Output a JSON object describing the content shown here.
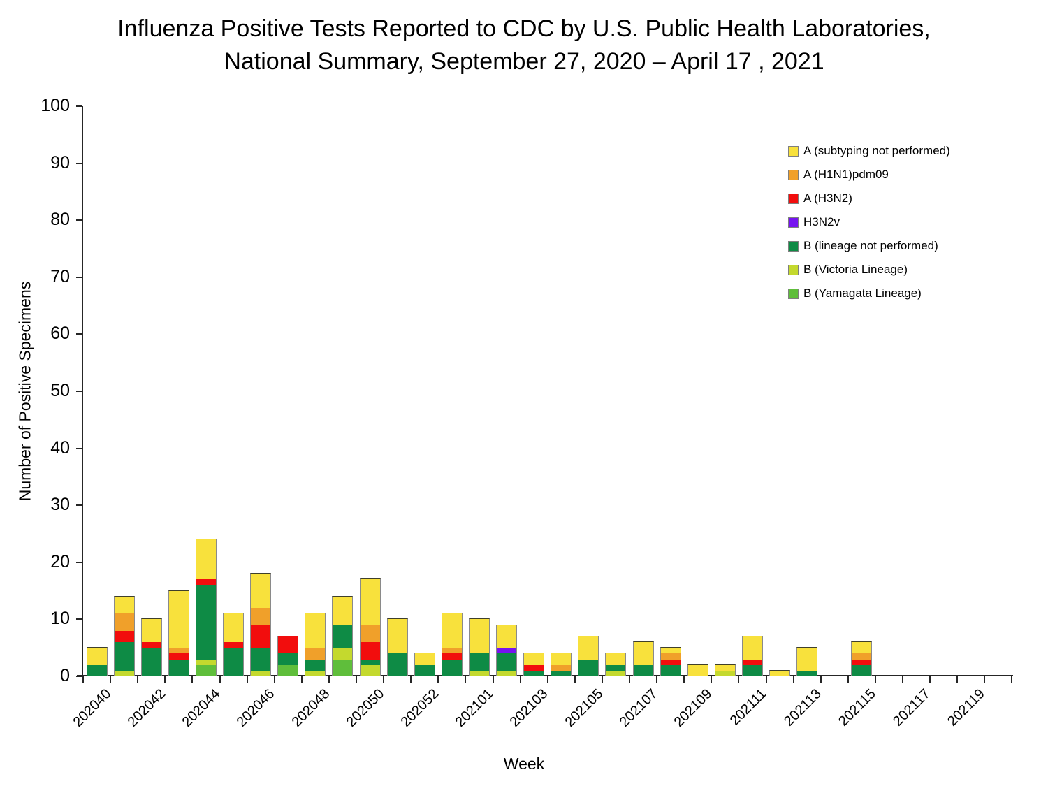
{
  "header": {
    "title_line1": "Influenza Positive Tests Reported to CDC by U.S. Public Health Laboratories,",
    "title_line2": "National Summary, September 27, 2020 – April 17 , 2021"
  },
  "chart_data": {
    "type": "bar",
    "stacked": true,
    "title": "Influenza Positive Tests Reported to CDC by U.S. Public Health Laboratories, National Summary, September 27, 2020 – April 17 , 2021",
    "xlabel": "Week",
    "ylabel": "Number of Positive Specimens",
    "ylim": [
      0,
      100
    ],
    "ytick_interval": 10,
    "grid": false,
    "legend_position": "upper right",
    "stack_order": "bottom-to-top is reverse of series order",
    "categories": [
      "202040",
      "202041",
      "202042",
      "202043",
      "202044",
      "202045",
      "202046",
      "202047",
      "202048",
      "202049",
      "202050",
      "202051",
      "202052",
      "202053",
      "202101",
      "202102",
      "202103",
      "202104",
      "202105",
      "202106",
      "202107",
      "202108",
      "202109",
      "202110",
      "202111",
      "202112",
      "202113",
      "202114",
      "202115",
      "202116",
      "202117",
      "202118",
      "202119",
      "202120"
    ],
    "xtick_labels": [
      "202040",
      "202042",
      "202044",
      "202046",
      "202048",
      "202050",
      "202052",
      "202101",
      "202103",
      "202105",
      "202107",
      "202109",
      "202111",
      "202113",
      "202115",
      "202117",
      "202119"
    ],
    "series": [
      {
        "name": "A (subtyping not performed)",
        "color": "#F8E13C",
        "values": [
          3,
          3,
          4,
          10,
          7,
          5,
          6,
          0,
          6,
          5,
          8,
          6,
          2,
          6,
          6,
          4,
          2,
          2,
          4,
          2,
          4,
          1,
          2,
          1,
          4,
          1,
          4,
          0,
          2,
          0,
          0,
          0,
          0,
          0
        ]
      },
      {
        "name": "A (H1N1)pdm09",
        "color": "#F0A02A",
        "values": [
          0,
          3,
          0,
          1,
          0,
          0,
          3,
          0,
          2,
          0,
          3,
          0,
          0,
          1,
          0,
          0,
          0,
          1,
          0,
          0,
          0,
          1,
          0,
          0,
          0,
          0,
          0,
          0,
          1,
          0,
          0,
          0,
          0,
          0
        ]
      },
      {
        "name": "A (H3N2)",
        "color": "#F20D0D",
        "values": [
          0,
          2,
          1,
          1,
          1,
          1,
          4,
          3,
          0,
          0,
          3,
          0,
          0,
          1,
          0,
          0,
          1,
          0,
          0,
          0,
          0,
          1,
          0,
          0,
          1,
          0,
          0,
          0,
          1,
          0,
          0,
          0,
          0,
          0
        ]
      },
      {
        "name": "H3N2v",
        "color": "#7614F0",
        "values": [
          0,
          0,
          0,
          0,
          0,
          0,
          0,
          0,
          0,
          0,
          0,
          0,
          0,
          0,
          0,
          1,
          0,
          0,
          0,
          0,
          0,
          0,
          0,
          0,
          0,
          0,
          0,
          0,
          0,
          0,
          0,
          0,
          0,
          0
        ]
      },
      {
        "name": "B (lineage not performed)",
        "color": "#0E8B45",
        "values": [
          2,
          5,
          5,
          3,
          13,
          5,
          4,
          2,
          2,
          4,
          1,
          4,
          2,
          3,
          3,
          3,
          1,
          1,
          3,
          1,
          2,
          2,
          0,
          0,
          2,
          0,
          1,
          0,
          2,
          0,
          0,
          0,
          0,
          0
        ]
      },
      {
        "name": "B (Victoria Lineage)",
        "color": "#C4D92E",
        "values": [
          0,
          1,
          0,
          0,
          1,
          0,
          1,
          0,
          1,
          2,
          2,
          0,
          0,
          0,
          1,
          1,
          0,
          0,
          0,
          1,
          0,
          0,
          0,
          1,
          0,
          0,
          0,
          0,
          0,
          0,
          0,
          0,
          0,
          0
        ]
      },
      {
        "name": "B (Yamagata Lineage)",
        "color": "#5FBE3B",
        "values": [
          0,
          0,
          0,
          0,
          2,
          0,
          0,
          2,
          0,
          3,
          0,
          0,
          0,
          0,
          0,
          0,
          0,
          0,
          0,
          0,
          0,
          0,
          0,
          0,
          0,
          0,
          0,
          0,
          0,
          0,
          0,
          0,
          0,
          0
        ]
      }
    ]
  }
}
